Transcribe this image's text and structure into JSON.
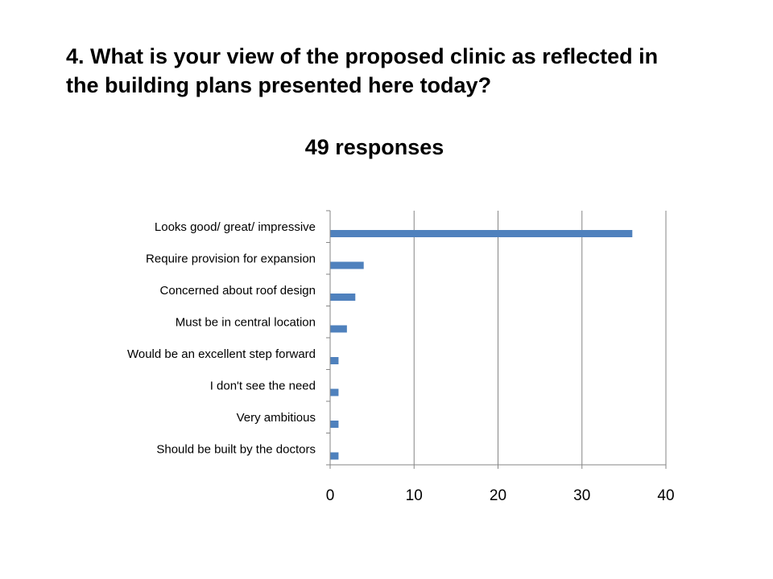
{
  "title_lines": [
    "4. What is your view of the proposed clinic as  reflected in",
    "the building plans presented here today?"
  ],
  "subtitle": "49 responses",
  "chart_data": {
    "type": "bar",
    "orientation": "horizontal",
    "categories": [
      "Looks good/ great/ impressive",
      "Require provision for expansion",
      "Concerned about roof design",
      "Must be in central location",
      "Would be an excellent step forward",
      "I don't see the need",
      "Very ambitious",
      "Should be built by the doctors"
    ],
    "values": [
      36,
      4,
      3,
      2,
      1,
      1,
      1,
      1
    ],
    "xlim": [
      0,
      40
    ],
    "xticks": [
      "0",
      "10",
      "20",
      "30",
      "40"
    ],
    "grid": true,
    "bar_color": "#4F81BD",
    "gridline_color": "#868686",
    "legend": "none"
  }
}
